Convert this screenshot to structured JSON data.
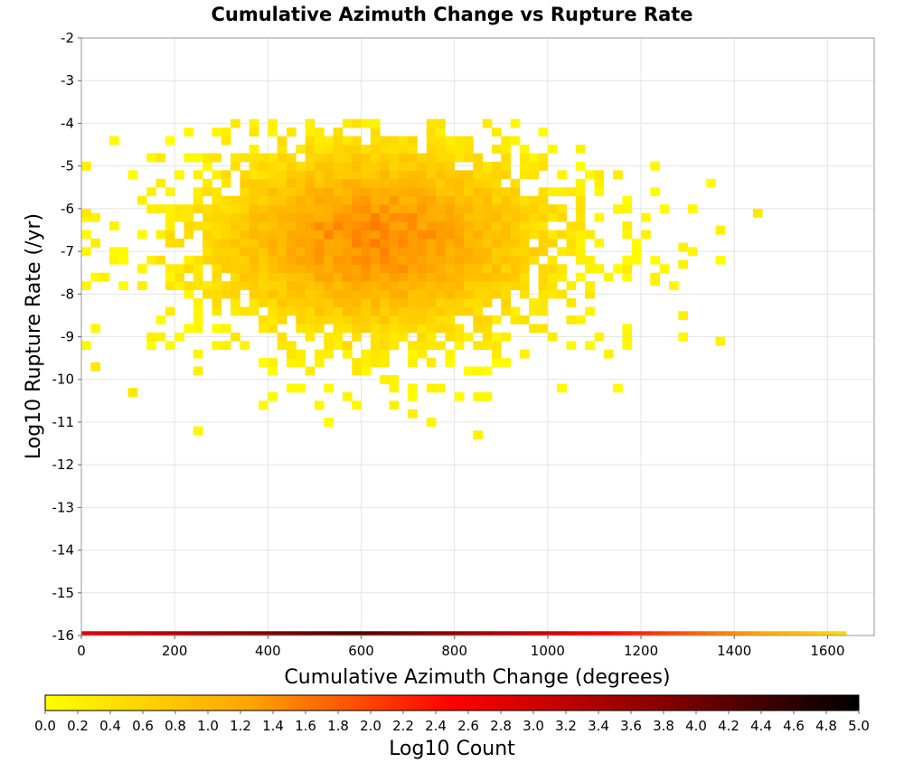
{
  "chart_data": {
    "type": "heatmap",
    "title": "Cumulative Azimuth Change vs Rupture Rate",
    "xlabel": "Cumulative Azimuth Change (degrees)",
    "ylabel": "Log10 Rupture Rate (/yr)",
    "xlim": [
      0,
      1700
    ],
    "ylim": [
      -16,
      -2
    ],
    "x_ticks": [
      0,
      200,
      400,
      600,
      800,
      1000,
      1200,
      1400,
      1600
    ],
    "y_ticks": [
      -2,
      -3,
      -4,
      -5,
      -6,
      -7,
      -8,
      -9,
      -10,
      -11,
      -12,
      -13,
      -14,
      -15,
      -16
    ],
    "x_bin_width": 20,
    "y_bin_width": 0.2,
    "grid": true,
    "colorbar": {
      "label": "Log10 Count",
      "min": 0.0,
      "max": 5.0,
      "tick_labels": [
        "0.0",
        "0.2",
        "0.4",
        "0.6",
        "0.8",
        "1.0",
        "1.2",
        "1.4",
        "1.6",
        "1.8",
        "2.0",
        "2.2",
        "2.4",
        "2.6",
        "2.8",
        "3.0",
        "3.2",
        "3.4",
        "3.6",
        "3.8",
        "4.0",
        "4.2",
        "4.4",
        "4.6",
        "4.8",
        "5.0"
      ],
      "colors": [
        "#ffff00",
        "#ffa500",
        "#ff0000",
        "#8b0000",
        "#000000"
      ]
    },
    "density_model": {
      "center_x": 620,
      "center_y": -6.8,
      "spread_x": 250,
      "spread_y": 1.5,
      "peak_log10_count": 1.45,
      "x_range": [
        0,
        1440
      ],
      "y_range": [
        -11.5,
        -3.9
      ]
    },
    "cells": [
      {
        "x": 1440,
        "y": -6.2,
        "v": 0.3
      },
      {
        "x": 1360,
        "y": -6.6,
        "v": 0.2
      },
      {
        "x": 1360,
        "y": -9.2,
        "v": 0.2
      },
      {
        "x": 1280,
        "y": -7.0,
        "v": 0.2
      },
      {
        "x": 1280,
        "y": -7.4,
        "v": 0.2
      },
      {
        "x": 1280,
        "y": -8.6,
        "v": 0.2
      },
      {
        "x": 1220,
        "y": -7.8,
        "v": 0.2
      },
      {
        "x": 840,
        "y": -11.4,
        "v": 0.2
      },
      {
        "x": 0,
        "y": -6.2,
        "v": 0.3
      },
      {
        "x": 20,
        "y": -9.8,
        "v": 0.3
      },
      {
        "x": 100,
        "y": -10.4,
        "v": 0.3
      }
    ],
    "bottom_strip": {
      "y": -16.0,
      "x_range": [
        0,
        1640
      ],
      "v_start": 2.8,
      "v_peak": 4.3,
      "v_end": 0.5
    }
  }
}
